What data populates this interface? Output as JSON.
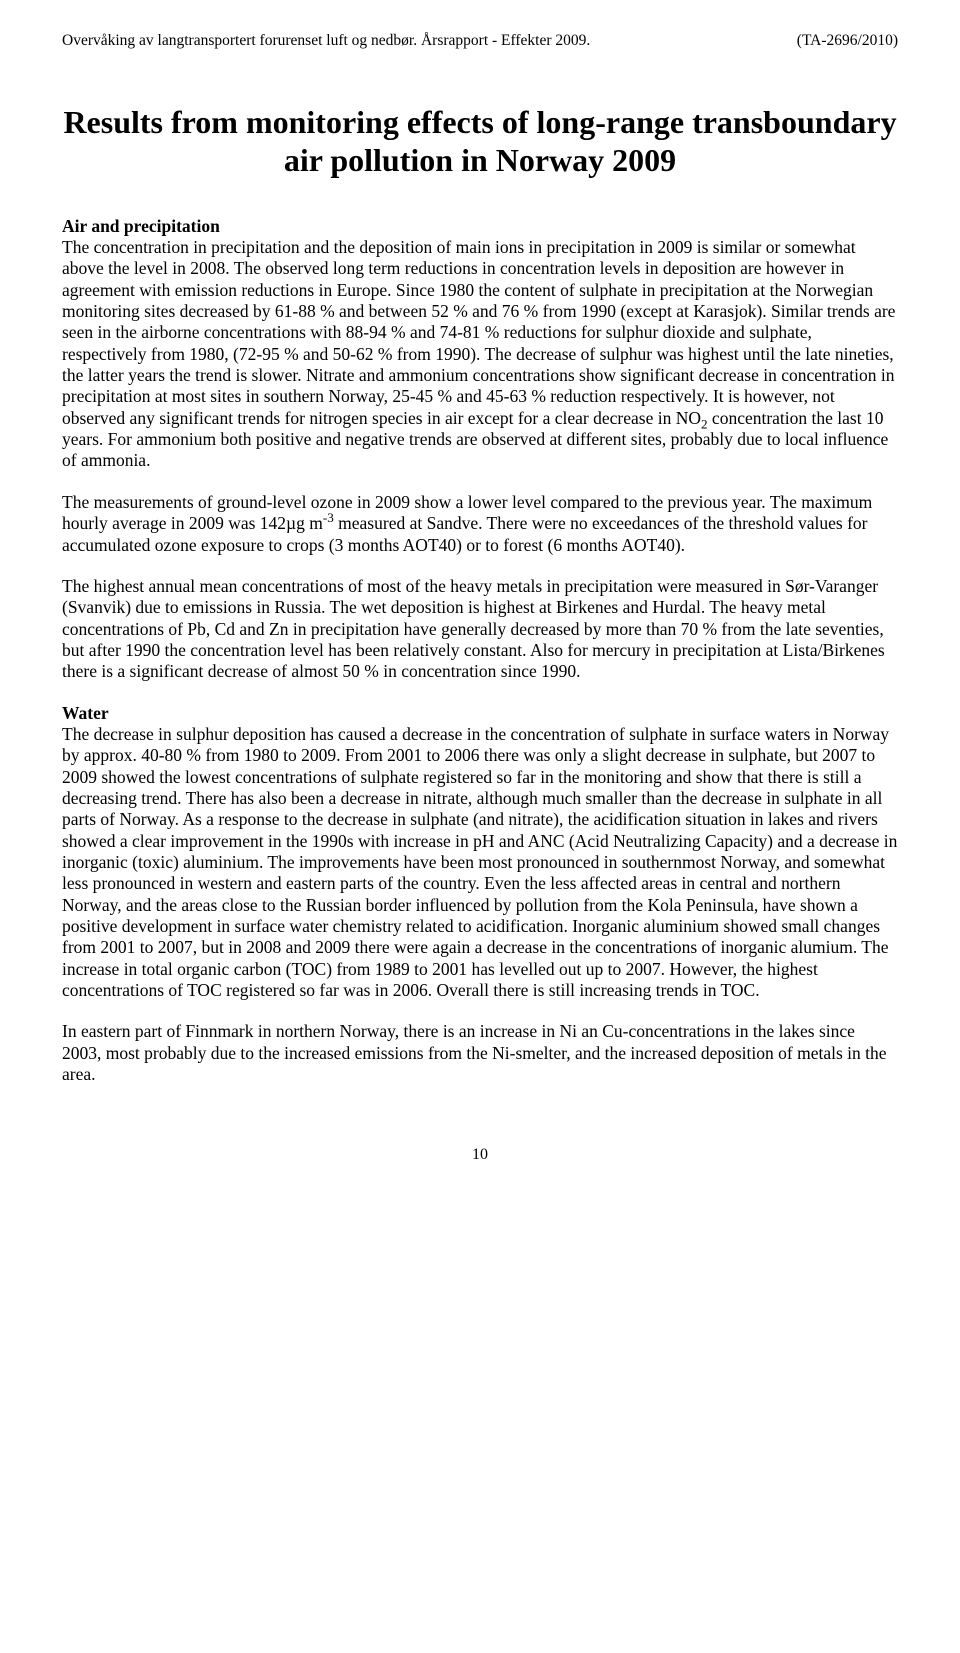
{
  "header": {
    "left": "Overvåking av langtransportert forurenset luft og nedbør. Årsrapport - Effekter 2009.",
    "right": "(TA-2696/2010)"
  },
  "title": "Results from monitoring effects of long-range transboundary air pollution in Norway 2009",
  "sections": {
    "air_heading": "Air and precipitation",
    "air_p1a": "The concentration in precipitation and the deposition of main ions in precipitation in 2009 is similar or somewhat above the level in 2008. The observed long term reductions in concentration levels in deposition are however in agreement with emission reductions in Europe. Since 1980 the content of sulphate in precipitation at the Norwegian monitoring sites decreased by 61-88 % and between 52 % and 76 % from 1990 (except at Karasjok). Similar trends are seen in the airborne concentrations with 88-94 % and 74-81 % reductions for sulphur dioxide and sulphate, respectively from 1980, (72-95 % and 50-62 % from 1990). The decrease of sulphur was highest until the late nineties, the latter years the trend is slower. Nitrate and ammonium concentrations show significant decrease in concentration in precipitation at most sites in southern Norway, 25-45 % and 45-63 % reduction respectively. It is however, not observed any significant trends for nitrogen species in air except for a clear decrease in NO",
    "air_p1b": " concentration the last 10 years. For ammonium both positive and negative trends are observed at different sites, probably due to local influence of ammonia.",
    "air_p2a": "The measurements of ground-level ozone in 2009 show a lower level compared to the previous year. The maximum hourly average in 2009 was 142µg m",
    "air_p2b": " measured at Sandve. There were no exceedances of the threshold values for accumulated ozone exposure to crops (3 months AOT40) or to forest (6 months AOT40).",
    "air_p3": "The highest annual mean concentrations of most of the heavy metals in precipitation were measured in Sør-Varanger (Svanvik) due to emissions in Russia. The wet deposition is highest at Birkenes and Hurdal. The heavy metal concentrations of Pb, Cd and Zn in precipitation have generally decreased by more than 70 % from the late seventies, but after 1990 the concentration level has been relatively constant. Also for mercury in precipitation at Lista/Birkenes there is a significant decrease of almost 50 % in concentration since 1990.",
    "water_heading": "Water",
    "water_p1": "The decrease in sulphur deposition has caused a decrease in the concentration of sulphate in surface waters in Norway by approx. 40-80 % from 1980 to 2009. From 2001 to 2006 there was only a slight decrease in sulphate, but 2007 to 2009 showed the lowest concentrations of sulphate registered so far in the monitoring and show that there is still a decreasing trend. There has also been a decrease in nitrate, although much smaller than the decrease in sulphate in all parts of Norway. As a response to the decrease in sulphate (and nitrate), the acidification situation in lakes and rivers showed a clear improvement in the 1990s with increase in pH and ANC (Acid Neutralizing Capacity) and a decrease in inorganic (toxic) aluminium. The improvements have been most pronounced in southernmost Norway, and somewhat less pronounced in western and eastern parts of the country. Even the less affected areas in central and northern Norway, and the areas close to the Russian border influenced by pollution from the Kola Peninsula, have shown a positive development in surface water chemistry related to acidification. Inorganic aluminium showed small changes from 2001 to 2007, but in 2008 and 2009 there were again a decrease in the concentrations of inorganic alumium. The increase in total organic carbon (TOC) from 1989 to 2001 has levelled out up to 2007. However, the highest concentrations of TOC registered so far was in 2006. Overall there is still increasing trends in TOC.",
    "water_p2": "In eastern part of Finnmark in northern Norway, there is an increase in Ni an Cu-concentrations in the lakes since 2003, most probably due to the increased emissions from the Ni-smelter, and the increased deposition of metals in the area."
  },
  "subscripts": {
    "no2": "2"
  },
  "superscripts": {
    "m3": "-3"
  },
  "page_number": "10"
}
